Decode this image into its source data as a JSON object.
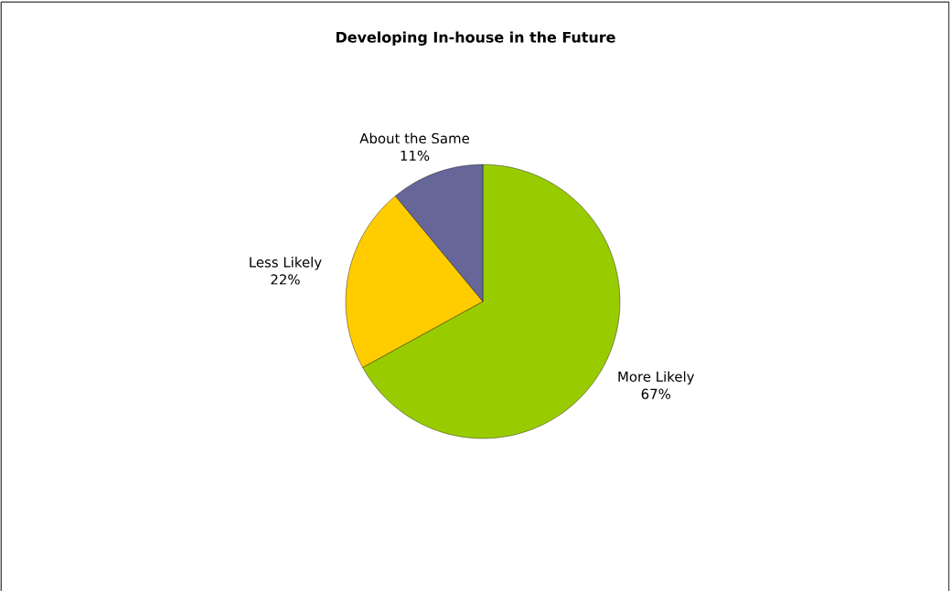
{
  "chart_data": {
    "type": "pie",
    "title": "Developing In-house in the Future",
    "categories": [
      "More Likely",
      "Less Likely",
      "About the Same"
    ],
    "values": [
      67,
      22,
      11
    ],
    "value_labels": [
      "67%",
      "22%",
      "11%"
    ],
    "colors": [
      "#99cc00",
      "#ffcc00",
      "#666699"
    ]
  }
}
